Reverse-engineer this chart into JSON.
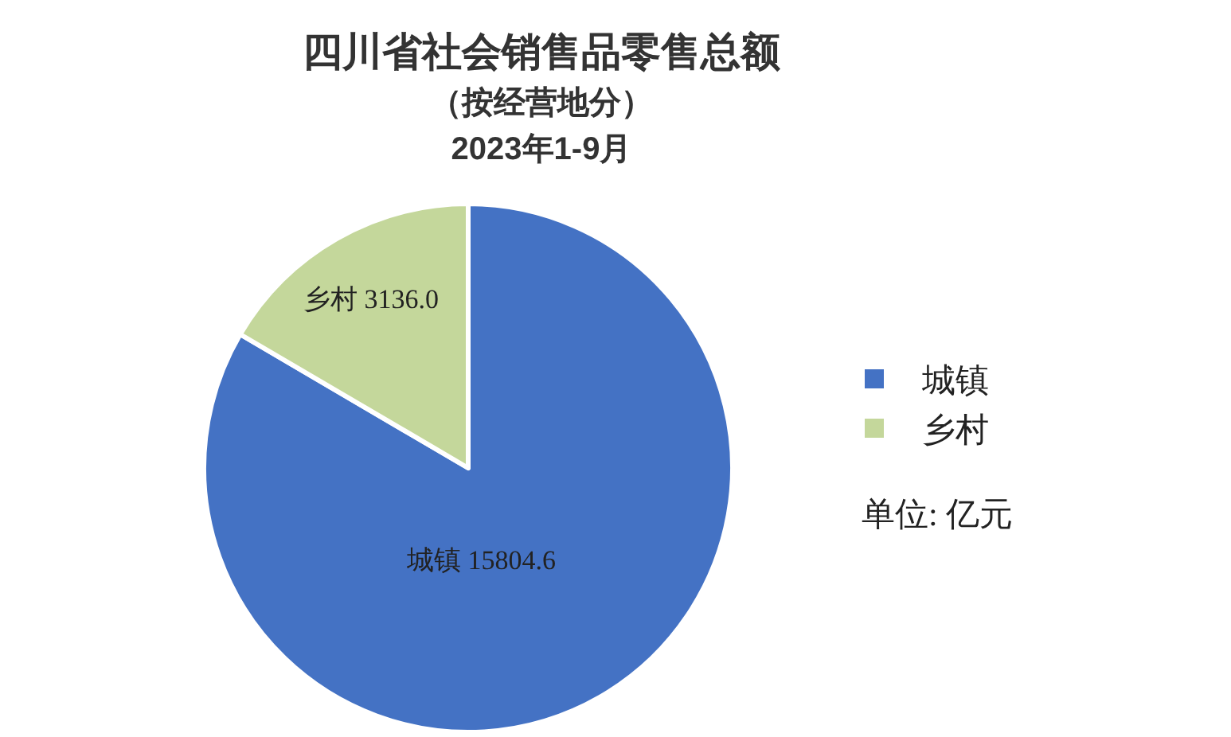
{
  "chart_data": {
    "type": "pie",
    "title": "四川省社会销售品零售总额",
    "subtitle": "（按经营地分）\n2023年1-9月",
    "categories": [
      "城镇",
      "乡村"
    ],
    "values": [
      15804.6,
      3136.0
    ],
    "colors": [
      "#4472c4",
      "#c4d79b"
    ],
    "value_labels": [
      "15804.6",
      "3136.0"
    ],
    "legend": "right",
    "annotations": [
      "单位: 亿元"
    ]
  }
}
